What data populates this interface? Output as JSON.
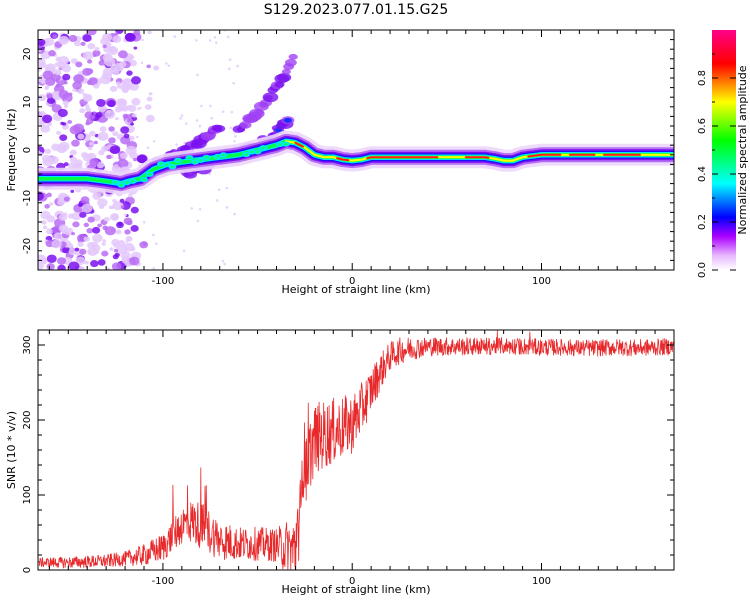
{
  "title": "S129.2023.077.01.15.G25",
  "colors": {
    "snr_line": "#e8292b",
    "ridge_core": "#ff1a1a",
    "spectrum_palette": [
      "#ffffff",
      "#cc00ff",
      "#7a00ff",
      "#0000ff",
      "#00e5ff",
      "#00ff44",
      "#ffff00",
      "#ff0000"
    ]
  },
  "chart_data": [
    {
      "type": "heatmap",
      "title": "S129.2023.077.01.15.G25",
      "xlabel": "Height of straight line (km)",
      "ylabel": "Frequency (Hz)",
      "xlim": [
        -166,
        170
      ],
      "ylim": [
        -25,
        25
      ],
      "x_ticks": [
        -100,
        0,
        100
      ],
      "y_ticks": [
        -20,
        -10,
        0,
        10,
        20
      ],
      "colorbar": {
        "label": "Normalized spectral amplitude",
        "range": [
          0,
          1
        ],
        "ticks": [
          "0.0",
          "0.2",
          "0.4",
          "0.6",
          "0.8"
        ]
      },
      "ridge": {
        "x": [
          -165,
          -160,
          -150,
          -140,
          -130,
          -122,
          -118,
          -112,
          -105,
          -98,
          -90,
          -80,
          -70,
          -60,
          -50,
          -40,
          -35,
          -30,
          -25,
          -20,
          -15,
          -10,
          -5,
          0,
          5,
          10,
          20,
          30,
          40,
          50,
          60,
          70,
          75,
          80,
          85,
          90,
          100,
          110,
          120,
          130,
          140,
          150,
          160,
          170
        ],
        "y": [
          -6,
          -6,
          -6,
          -6,
          -6.5,
          -7,
          -6.5,
          -6,
          -4,
          -3,
          -2.5,
          -2,
          -1.5,
          -1,
          0,
          1,
          1.8,
          1.5,
          0.5,
          -1,
          -1.5,
          -1.5,
          -2,
          -2.2,
          -2,
          -1.5,
          -1.5,
          -1.5,
          -1.5,
          -1.5,
          -1.5,
          -1.5,
          -1.8,
          -2.2,
          -2.2,
          -1.5,
          -1,
          -1,
          -1,
          -1,
          -1,
          -1,
          -1,
          -1
        ]
      },
      "upper_branches": [
        {
          "x": [
            -105,
            -95,
            -85,
            -75,
            -70
          ],
          "y": [
            -3,
            -1,
            1,
            3,
            4.5
          ]
        },
        {
          "x": [
            -88,
            -75,
            -62,
            -50,
            -40,
            -33
          ],
          "y": [
            -5,
            -3,
            -1,
            1,
            4,
            6
          ]
        },
        {
          "x": [
            -60,
            -50,
            -42,
            -35,
            -30
          ],
          "y": [
            4,
            8,
            12,
            16,
            21
          ]
        }
      ]
    },
    {
      "type": "line",
      "xlabel": "Height of straight line (km)",
      "ylabel": "SNR (10 * v/v)",
      "xlim": [
        -166,
        170
      ],
      "ylim": [
        0,
        320
      ],
      "x_ticks": [
        -100,
        0,
        100
      ],
      "y_ticks": [
        0,
        100,
        200,
        300
      ],
      "envelope": {
        "x": [
          -166,
          -150,
          -130,
          -120,
          -110,
          -100,
          -95,
          -90,
          -85,
          -80,
          -75,
          -70,
          -60,
          -50,
          -40,
          -35,
          -30,
          -28,
          -26,
          -24,
          -22,
          -20,
          -15,
          -10,
          -5,
          0,
          5,
          10,
          15,
          20,
          25,
          30,
          40,
          50,
          60,
          70,
          80,
          90,
          100,
          110,
          120,
          130,
          140,
          150,
          160,
          170
        ],
        "y": [
          10,
          10,
          12,
          15,
          20,
          30,
          45,
          60,
          65,
          60,
          50,
          40,
          35,
          35,
          33,
          30,
          25,
          40,
          150,
          140,
          160,
          175,
          180,
          185,
          190,
          195,
          215,
          240,
          265,
          285,
          292,
          295,
          298,
          298,
          298,
          298,
          299,
          298,
          297,
          297,
          296,
          296,
          297,
          296,
          297,
          298
        ]
      },
      "noise": {
        "x": [
          -166,
          -120,
          -100,
          -80,
          -60,
          -40,
          -28,
          -20,
          0,
          20,
          40,
          80,
          170
        ],
        "y": [
          4,
          6,
          12,
          20,
          14,
          14,
          35,
          30,
          25,
          12,
          8,
          7,
          7
        ]
      }
    }
  ]
}
